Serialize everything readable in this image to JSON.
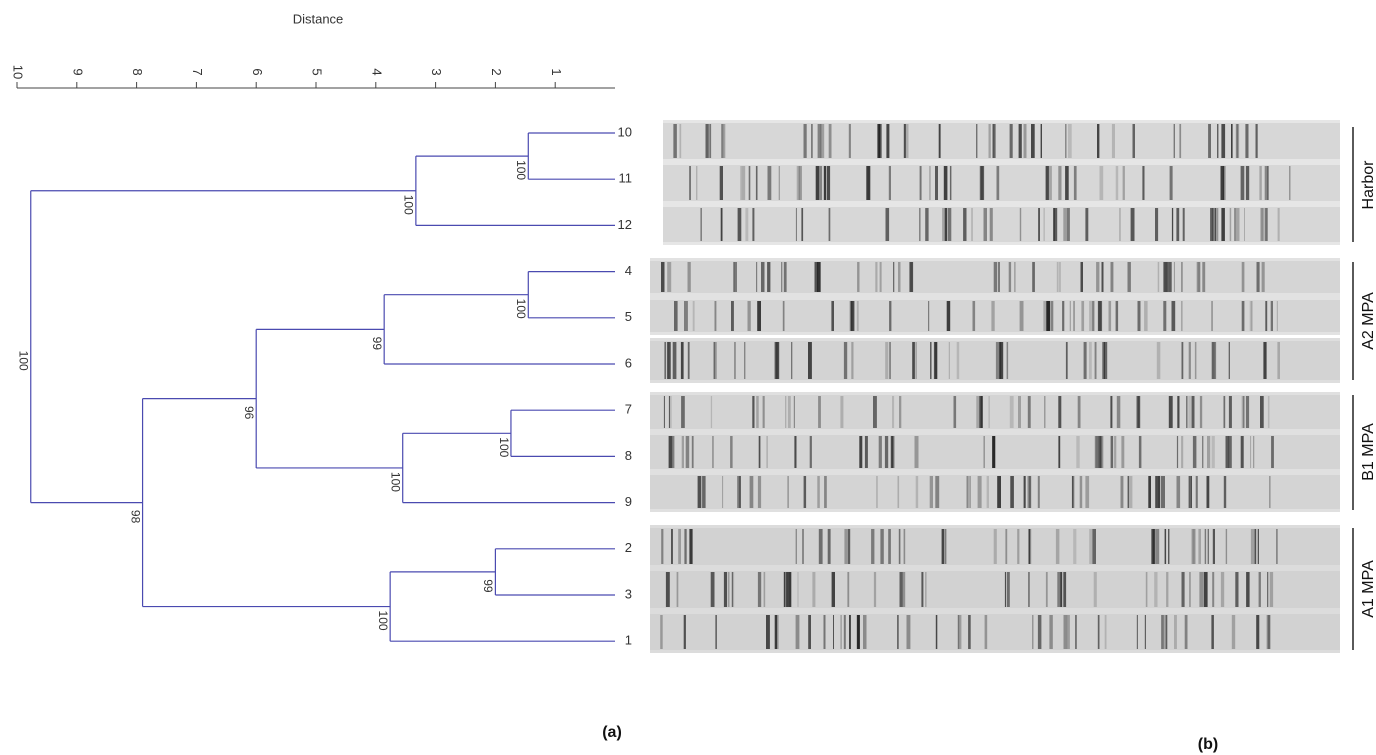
{
  "chart_data": {
    "type": "dendrogram",
    "axis_title": "Distance",
    "xlim": [
      0,
      10
    ],
    "xticks": [
      1,
      2,
      3,
      4,
      5,
      6,
      7,
      8,
      9,
      10
    ],
    "tree": {
      "height": 9.77,
      "support": 100,
      "children": [
        {
          "height": 3.33,
          "support": 100,
          "children": [
            {
              "height": 1.45,
              "support": 100,
              "children": [
                {
                  "leaf": "10"
                },
                {
                  "leaf": "11"
                }
              ]
            },
            {
              "leaf": "12"
            }
          ]
        },
        {
          "height": 7.9,
          "support": 98,
          "children": [
            {
              "height": 6.0,
              "support": 96,
              "children": [
                {
                  "height": 3.86,
                  "support": 99,
                  "children": [
                    {
                      "height": 1.45,
                      "support": 100,
                      "children": [
                        {
                          "leaf": "4"
                        },
                        {
                          "leaf": "5"
                        }
                      ]
                    },
                    {
                      "leaf": "6"
                    }
                  ]
                },
                {
                  "height": 3.55,
                  "support": 100,
                  "children": [
                    {
                      "height": 1.74,
                      "support": 100,
                      "children": [
                        {
                          "leaf": "7"
                        },
                        {
                          "leaf": "8"
                        }
                      ]
                    },
                    {
                      "leaf": "9"
                    }
                  ]
                }
              ]
            },
            {
              "height": 3.76,
              "support": 100,
              "children": [
                {
                  "height": 2.0,
                  "support": 99,
                  "children": [
                    {
                      "leaf": "2"
                    },
                    {
                      "leaf": "3"
                    }
                  ]
                },
                {
                  "leaf": "1"
                }
              ]
            }
          ]
        }
      ]
    },
    "groups": [
      "Harbor",
      "A2 MPA",
      "B1 MPA",
      "A1 MPA"
    ],
    "panel_labels": [
      "(a)",
      "(b)"
    ]
  }
}
